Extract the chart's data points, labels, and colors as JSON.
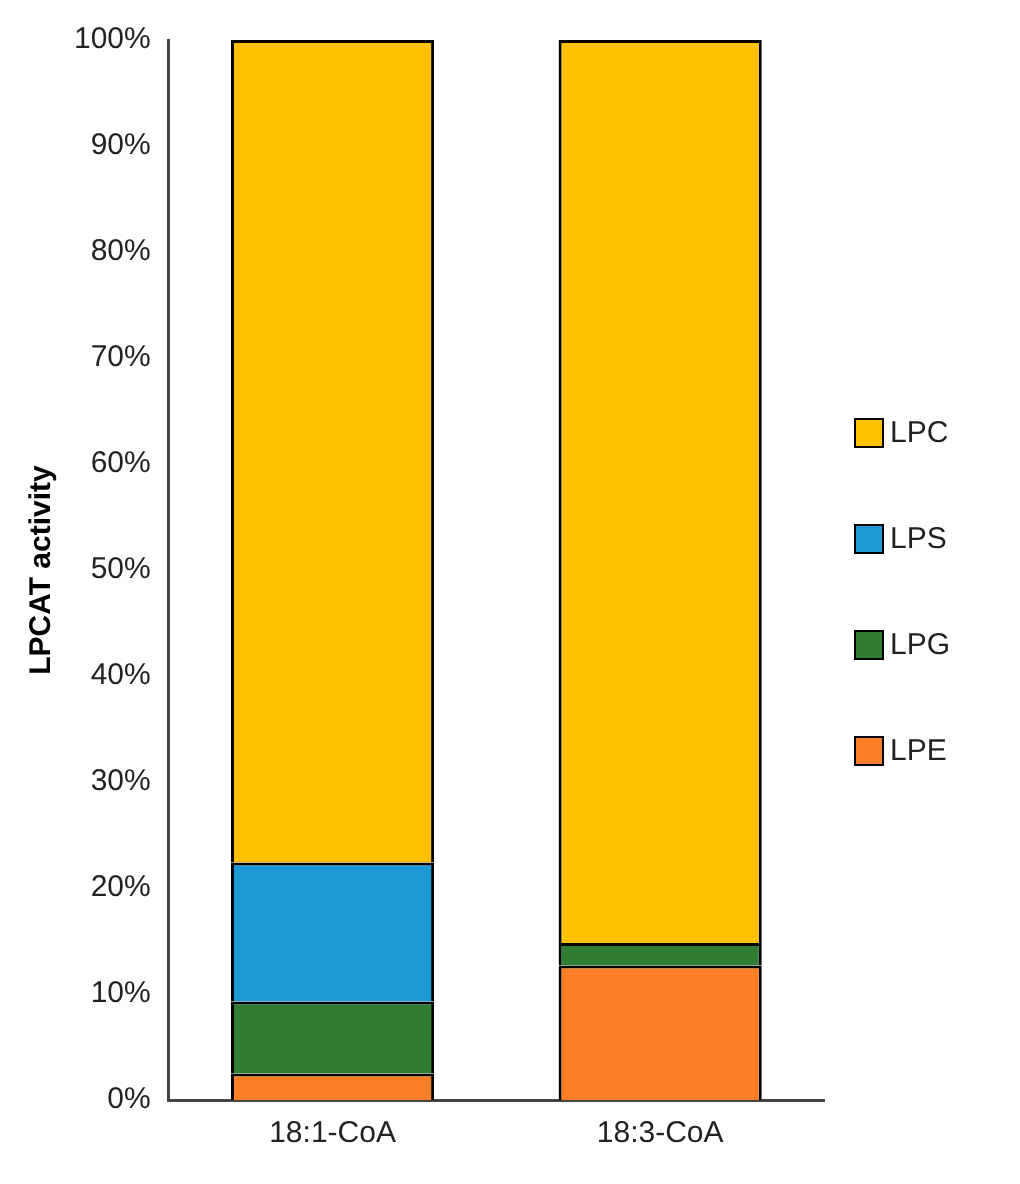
{
  "chart_data": {
    "type": "bar",
    "stacked": true,
    "ylabel": "LPCAT activity",
    "categories": [
      "18:1-CoA",
      "18:3-CoA"
    ],
    "series": [
      {
        "name": "LPE",
        "color": "#ff7f27",
        "values": [
          2.5,
          12.7
        ]
      },
      {
        "name": "LPG",
        "color": "#2e7d32",
        "values": [
          6.8,
          2.1
        ]
      },
      {
        "name": "LPS",
        "color": "#1b9ad6",
        "values": [
          13.1,
          0
        ]
      },
      {
        "name": "LPC",
        "color": "#ffc000",
        "values": [
          77.6,
          85.2
        ]
      }
    ],
    "ylim": [
      0,
      100
    ],
    "yticks": [
      {
        "value": 0,
        "label": "0%"
      },
      {
        "value": 10,
        "label": "10%"
      },
      {
        "value": 20,
        "label": "20%"
      },
      {
        "value": 30,
        "label": "30%"
      },
      {
        "value": 40,
        "label": "40%"
      },
      {
        "value": 50,
        "label": "50%"
      },
      {
        "value": 60,
        "label": "60%"
      },
      {
        "value": 70,
        "label": "70%"
      },
      {
        "value": 80,
        "label": "80%"
      },
      {
        "value": 90,
        "label": "90%"
      },
      {
        "value": 100,
        "label": "100%"
      }
    ],
    "grid": false,
    "legend": "right"
  }
}
